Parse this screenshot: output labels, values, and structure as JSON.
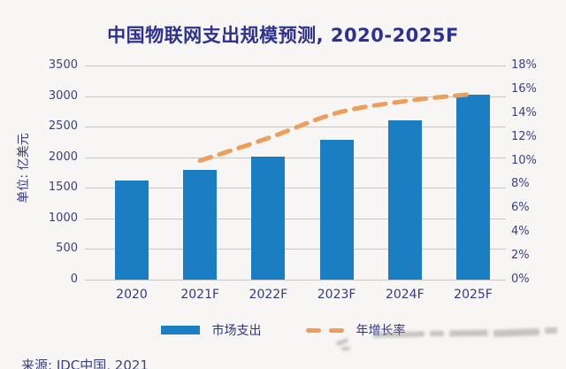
{
  "title": "中国物联网支出规模预测, 2020-2025F",
  "source": "来源: IDC中国, 2021",
  "legend": {
    "bar_label": "市场支出",
    "line_label": "年增长率"
  },
  "colors": {
    "bar": "#1b7ec2",
    "line": "#ec9e5a",
    "title_text": "#2e3192",
    "axis_text": "#3a3f8c",
    "gridline": "#c7c7c7",
    "background": "#f7f6f4"
  },
  "y_axis_left": {
    "unit_label": "单位: 亿美元",
    "ticks": [
      "3500",
      "3000",
      "2500",
      "2000",
      "1500",
      "1000",
      "500",
      "0"
    ]
  },
  "y_axis_right": {
    "ticks": [
      "18%",
      "16%",
      "14%",
      "12%",
      "10%",
      "8%",
      "6%",
      "4%",
      "2%",
      "0%"
    ]
  },
  "x_axis": {
    "ticks": [
      "2020",
      "2021F",
      "2022F",
      "2023F",
      "2024F",
      "2025F"
    ]
  },
  "chart_data": {
    "type": "bar",
    "title": "中国物联网支出规模预测, 2020-2025F",
    "categories": [
      "2020",
      "2021F",
      "2022F",
      "2023F",
      "2024F",
      "2025F"
    ],
    "series": [
      {
        "name": "市场支出",
        "type": "bar",
        "axis": "left",
        "color": "#1b7ec2",
        "values": [
          1620,
          1800,
          2010,
          2280,
          2610,
          3020
        ]
      },
      {
        "name": "年增长率",
        "type": "dashed-line",
        "axis": "right",
        "color": "#ec9e5a",
        "values": [
          null,
          10.0,
          11.9,
          14.0,
          15.0,
          15.6
        ]
      }
    ],
    "ylabel_left": "单位: 亿美元",
    "ylim_left": [
      0,
      3500
    ],
    "ytick_step_left": 500,
    "ylim_right": [
      0,
      18
    ],
    "ytick_step_right": 2,
    "grid": true,
    "legend_position": "bottom"
  }
}
